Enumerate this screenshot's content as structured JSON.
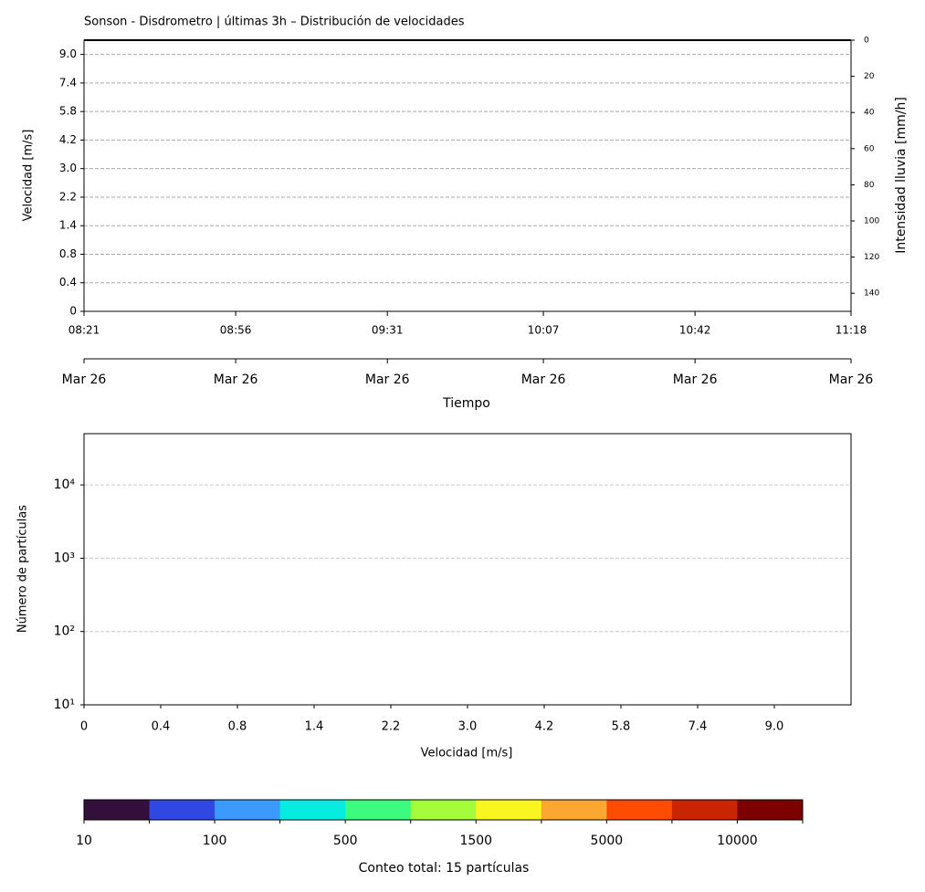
{
  "chart_data": [
    {
      "type": "heatmap",
      "title": "Sonson - Disdrometro | últimas 3h – Distribución de velocidades",
      "ylabel": "Velocidad [m/s]",
      "y2label": "Intensidad lluvia [mm/h]",
      "xlabel": "Tiempo",
      "xlim": [
        "08:21",
        "11:18"
      ],
      "xticks": [
        "08:21",
        "08:56",
        "09:31",
        "10:07",
        "10:42",
        "11:18"
      ],
      "date_ticks": [
        "Mar 26",
        "Mar 26",
        "Mar 26",
        "Mar 26",
        "Mar 26",
        "Mar 26"
      ],
      "ylim": [
        0,
        9.5
      ],
      "yticks": [
        0,
        {
          "value": 1,
          "label": "0.4"
        },
        {
          "value": 2,
          "label": "0.8"
        },
        {
          "value": 3,
          "label": "1.4"
        },
        {
          "value": 4,
          "label": "2.2"
        },
        {
          "value": 5,
          "label": "3.0"
        },
        {
          "value": 6,
          "label": "4.2"
        },
        {
          "value": 7,
          "label": "5.8"
        },
        {
          "value": 8,
          "label": "7.4"
        },
        {
          "value": 9,
          "label": "9.0"
        }
      ],
      "y2lim": [
        150,
        0
      ],
      "y2ticks": [
        0,
        20,
        40,
        60,
        80,
        100,
        120,
        140
      ],
      "grid": true
    },
    {
      "type": "bar",
      "xlabel": "Velocidad [m/s]",
      "ylabel": "Número de partículas",
      "log_y": true,
      "xlim": [
        0,
        10
      ],
      "xticks": [
        0,
        {
          "value": 1,
          "label": "0.4"
        },
        {
          "value": 2,
          "label": "0.8"
        },
        {
          "value": 3,
          "label": "1.4"
        },
        {
          "value": 4,
          "label": "2.2"
        },
        {
          "value": 5,
          "label": "3.0"
        },
        {
          "value": 6,
          "label": "4.2"
        },
        {
          "value": 7,
          "label": "5.8"
        },
        {
          "value": 8,
          "label": "7.4"
        },
        {
          "value": 9,
          "label": "9.0"
        }
      ],
      "ylim": [
        10,
        50000
      ],
      "yticks": [
        {
          "value": 10,
          "label": "10¹"
        },
        {
          "value": 100,
          "label": "10²"
        },
        {
          "value": 1000,
          "label": "10³"
        },
        {
          "value": 10000,
          "label": "10⁴"
        }
      ],
      "grid": true
    },
    {
      "type": "colorbar",
      "label": "Conteo total: 15 partículas",
      "colors": [
        "#33103b",
        "#3047e0",
        "#3a9bfc",
        "#05ece0",
        "#3dfb7f",
        "#a4fc3c",
        "#f8f520",
        "#fba731",
        "#fe4c03",
        "#c82503",
        "#7c0202"
      ],
      "boundaries": [
        10,
        null,
        100,
        null,
        500,
        null,
        1500,
        null,
        5000,
        null,
        10000,
        null
      ]
    }
  ]
}
